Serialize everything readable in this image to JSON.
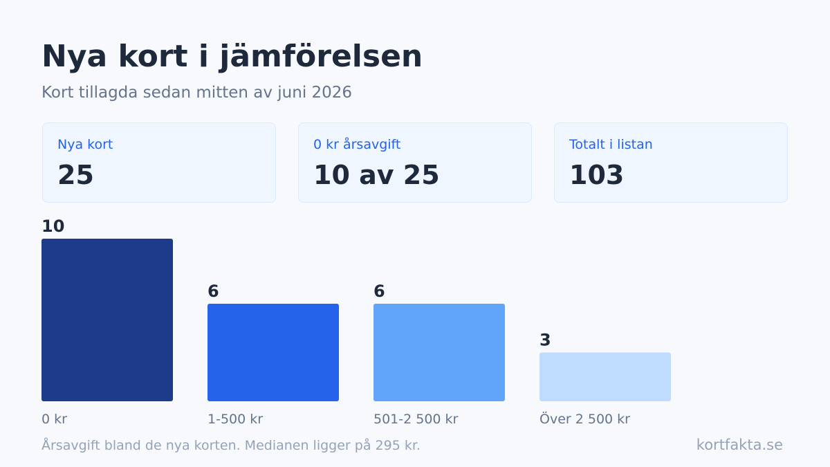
{
  "header": {
    "title": "Nya kort i jämförelsen",
    "subtitle": "Kort tillagda sedan mitten av juni 2026"
  },
  "stats": [
    {
      "label": "Nya kort",
      "value": "25"
    },
    {
      "label": "0 kr årsavgift",
      "value": "10 av 25"
    },
    {
      "label": "Totalt i listan",
      "value": "103"
    }
  ],
  "chart_data": {
    "type": "bar",
    "categories": [
      "0 kr",
      "1-500 kr",
      "501-2 500 kr",
      "Över 2 500 kr"
    ],
    "values": [
      10,
      6,
      6,
      3
    ],
    "colors": [
      "#1e3a8a",
      "#2563eb",
      "#60a5fa",
      "#bfdbfe"
    ],
    "title": "",
    "xlabel": "",
    "ylabel": "",
    "ylim": [
      0,
      10
    ],
    "grid": false,
    "legend": "none"
  },
  "footer": {
    "note": "Årsavgift bland de nya korten. Medianen ligger på 295 kr.",
    "brand": "kortfakta.se"
  }
}
